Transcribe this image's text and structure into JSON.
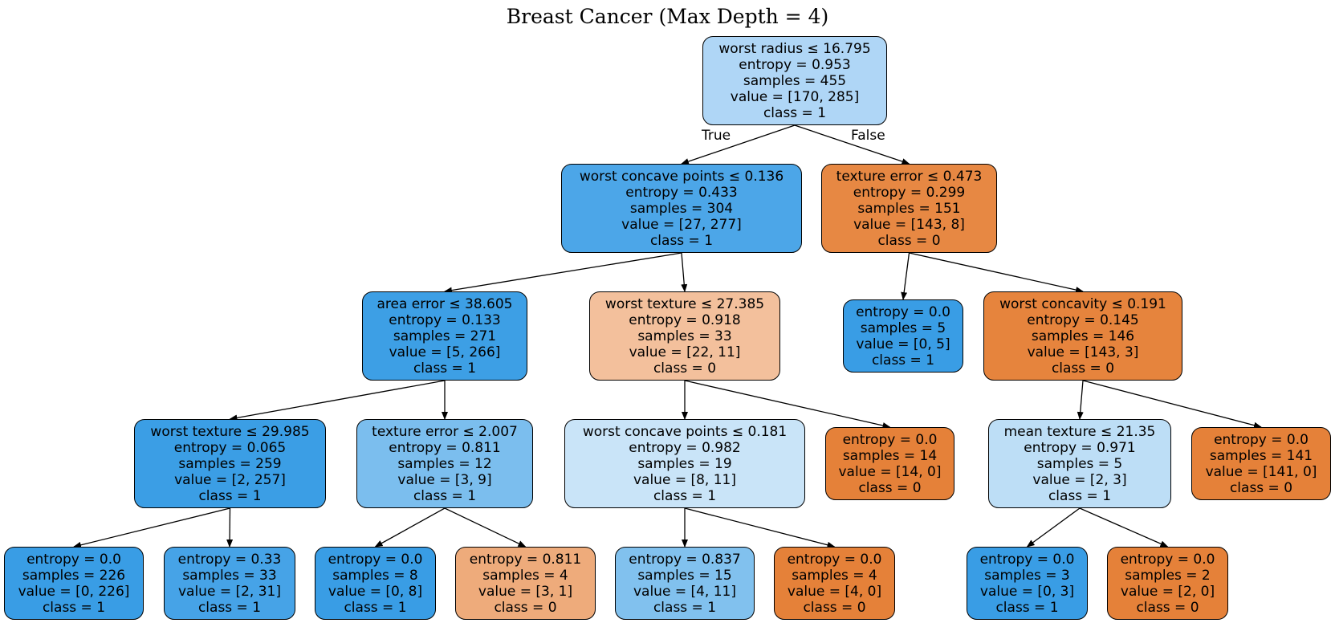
{
  "title": "Breast Cancer (Max Depth = 4)",
  "edge_labels": {
    "true": "True",
    "false": "False"
  },
  "nodes": [
    {
      "id": "n0",
      "lines": [
        "worst radius ≤ 16.795",
        "entropy = 0.953",
        "samples = 455",
        "value = [170, 285]",
        "class = 1"
      ],
      "color": "#afd6f6"
    },
    {
      "id": "n1",
      "lines": [
        "worst concave points ≤ 0.136",
        "entropy = 0.433",
        "samples = 304",
        "value = [27, 277]",
        "class = 1"
      ],
      "color": "#4ca6e8"
    },
    {
      "id": "n2",
      "lines": [
        "texture error ≤ 0.473",
        "entropy = 0.299",
        "samples = 151",
        "value = [143, 8]",
        "class = 0"
      ],
      "color": "#e78843"
    },
    {
      "id": "n3",
      "lines": [
        "area error ≤ 38.605",
        "entropy = 0.133",
        "samples = 271",
        "value = [5, 266]",
        "class = 1"
      ],
      "color": "#3d9fe5"
    },
    {
      "id": "n4",
      "lines": [
        "worst texture ≤ 27.385",
        "entropy = 0.918",
        "samples = 33",
        "value = [22, 11]",
        "class = 0"
      ],
      "color": "#f3c09c"
    },
    {
      "id": "n5",
      "lines": [
        "entropy = 0.0",
        "samples = 5",
        "value = [0, 5]",
        "class = 1"
      ],
      "color": "#399de5"
    },
    {
      "id": "n6",
      "lines": [
        "worst concavity ≤ 0.191",
        "entropy = 0.145",
        "samples = 146",
        "value = [143, 3]",
        "class = 0"
      ],
      "color": "#e6843d"
    },
    {
      "id": "n7",
      "lines": [
        "worst texture ≤ 29.985",
        "entropy = 0.065",
        "samples = 259",
        "value = [2, 257]",
        "class = 1"
      ],
      "color": "#3b9ee5"
    },
    {
      "id": "n8",
      "lines": [
        "texture error ≤ 2.007",
        "entropy = 0.811",
        "samples = 12",
        "value = [3, 9]",
        "class = 1"
      ],
      "color": "#7bbeee"
    },
    {
      "id": "n9",
      "lines": [
        "worst concave points ≤ 0.181",
        "entropy = 0.982",
        "samples = 19",
        "value = [8, 11]",
        "class = 1"
      ],
      "color": "#c9e4f8"
    },
    {
      "id": "n10",
      "lines": [
        "entropy = 0.0",
        "samples = 14",
        "value = [14, 0]",
        "class = 0"
      ],
      "color": "#e58139"
    },
    {
      "id": "n11",
      "lines": [
        "mean texture ≤ 21.35",
        "entropy = 0.971",
        "samples = 5",
        "value = [2, 3]",
        "class = 1"
      ],
      "color": "#bddef6"
    },
    {
      "id": "n12",
      "lines": [
        "entropy = 0.0",
        "samples = 141",
        "value = [141, 0]",
        "class = 0"
      ],
      "color": "#e58139"
    },
    {
      "id": "n13",
      "lines": [
        "entropy = 0.0",
        "samples = 226",
        "value = [0, 226]",
        "class = 1"
      ],
      "color": "#399de5"
    },
    {
      "id": "n14",
      "lines": [
        "entropy = 0.33",
        "samples = 33",
        "value = [2, 31]",
        "class = 1"
      ],
      "color": "#46a3e7"
    },
    {
      "id": "n15",
      "lines": [
        "entropy = 0.0",
        "samples = 8",
        "value = [0, 8]",
        "class = 1"
      ],
      "color": "#399de5"
    },
    {
      "id": "n16",
      "lines": [
        "entropy = 0.811",
        "samples = 4",
        "value = [3, 1]",
        "class = 0"
      ],
      "color": "#eeab7b"
    },
    {
      "id": "n17",
      "lines": [
        "entropy = 0.837",
        "samples = 15",
        "value = [4, 11]",
        "class = 1"
      ],
      "color": "#81c1ee"
    },
    {
      "id": "n18",
      "lines": [
        "entropy = 0.0",
        "samples = 4",
        "value = [4, 0]",
        "class = 0"
      ],
      "color": "#e58139"
    },
    {
      "id": "n19",
      "lines": [
        "entropy = 0.0",
        "samples = 3",
        "value = [0, 3]",
        "class = 1"
      ],
      "color": "#399de5"
    },
    {
      "id": "n20",
      "lines": [
        "entropy = 0.0",
        "samples = 2",
        "value = [2, 0]",
        "class = 0"
      ],
      "color": "#e58139"
    }
  ],
  "edges": [
    [
      "n0",
      "n1"
    ],
    [
      "n0",
      "n2"
    ],
    [
      "n1",
      "n3"
    ],
    [
      "n1",
      "n4"
    ],
    [
      "n2",
      "n5"
    ],
    [
      "n2",
      "n6"
    ],
    [
      "n3",
      "n7"
    ],
    [
      "n3",
      "n8"
    ],
    [
      "n4",
      "n9"
    ],
    [
      "n4",
      "n10"
    ],
    [
      "n6",
      "n11"
    ],
    [
      "n6",
      "n12"
    ],
    [
      "n7",
      "n13"
    ],
    [
      "n7",
      "n14"
    ],
    [
      "n8",
      "n15"
    ],
    [
      "n8",
      "n16"
    ],
    [
      "n9",
      "n17"
    ],
    [
      "n9",
      "n18"
    ],
    [
      "n11",
      "n19"
    ],
    [
      "n11",
      "n20"
    ]
  ]
}
